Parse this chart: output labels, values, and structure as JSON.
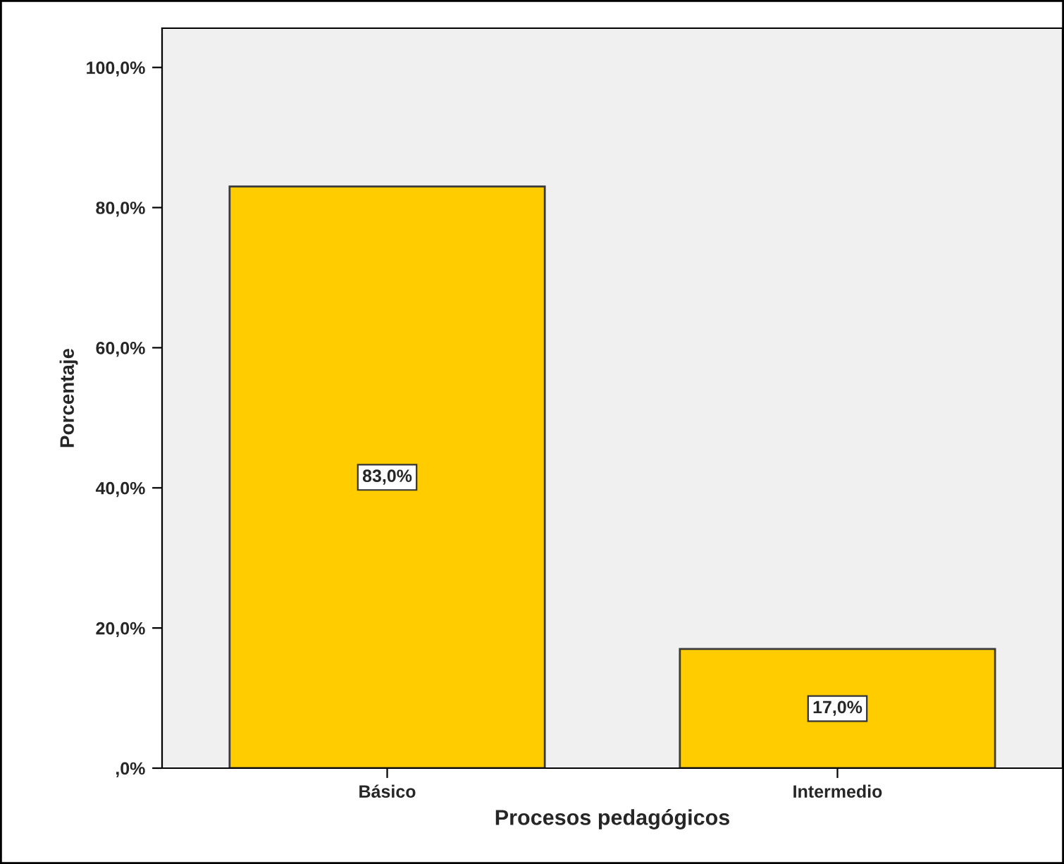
{
  "chart_data": {
    "type": "bar",
    "xlabel": "Procesos pedagógicos",
    "ylabel": "Porcentaje",
    "categories": [
      "Básico",
      "Intermedio"
    ],
    "values": [
      83.0,
      17.0
    ],
    "value_labels": [
      "83,0%",
      "17,0%"
    ],
    "color": "#ffcc00",
    "ylim": [
      0,
      105.6
    ],
    "yticks": [
      {
        "value": 0,
        "label": ",0%"
      },
      {
        "value": 20,
        "label": "20,0%"
      },
      {
        "value": 40,
        "label": "40,0%"
      },
      {
        "value": 60,
        "label": "60,0%"
      },
      {
        "value": 80,
        "label": "80,0%"
      },
      {
        "value": 100,
        "label": "100,0%"
      }
    ],
    "grid": false
  }
}
